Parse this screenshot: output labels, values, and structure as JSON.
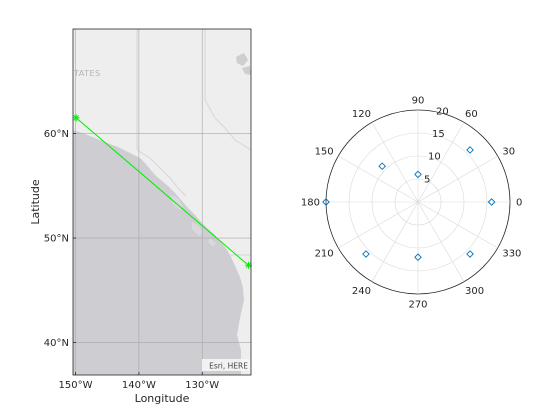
{
  "chart_data": [
    {
      "type": "geo-line",
      "xlabel": "Longitude",
      "ylabel": "Latitude",
      "xlim": [
        -150.4,
        -122.3
      ],
      "ylim": [
        36.9,
        70.0
      ],
      "grid": true,
      "xticks": [
        {
          "value": -150,
          "label": "150°W"
        },
        {
          "value": -140,
          "label": "140°W"
        },
        {
          "value": -130,
          "label": "130°W"
        }
      ],
      "yticks": [
        {
          "value": 60,
          "label": "60°N"
        },
        {
          "value": 50,
          "label": "50°N"
        },
        {
          "value": 40,
          "label": "40°N"
        }
      ],
      "series": [
        {
          "marker": "asterisk",
          "color": "#00ee00",
          "points": [
            {
              "lon": -149.9,
              "lat": 61.5
            },
            {
              "lon": -122.7,
              "lat": 47.4
            }
          ]
        }
      ],
      "basemap_labels": [
        "TATES"
      ],
      "attribution": "Esri, HERE",
      "colors": {
        "land": "#eeeeee",
        "water": "#cdcdd2",
        "border": "#d6d6d6"
      }
    },
    {
      "type": "polar-scatter",
      "theta_ticks": [
        "0",
        "30",
        "60",
        "90",
        "120",
        "150",
        "180",
        "210",
        "240",
        "270",
        "300",
        "330"
      ],
      "r_ticks": [
        "5",
        "10",
        "15",
        "20"
      ],
      "rlim": [
        0,
        20
      ],
      "marker": "diamond",
      "color": "#0072bd",
      "points": [
        {
          "theta": 0,
          "r": 16
        },
        {
          "theta": 45,
          "r": 16
        },
        {
          "theta": 90,
          "r": 6
        },
        {
          "theta": 135,
          "r": 11
        },
        {
          "theta": 180,
          "r": 20
        },
        {
          "theta": 225,
          "r": 16
        },
        {
          "theta": 270,
          "r": 12
        },
        {
          "theta": 315,
          "r": 16
        }
      ]
    }
  ]
}
